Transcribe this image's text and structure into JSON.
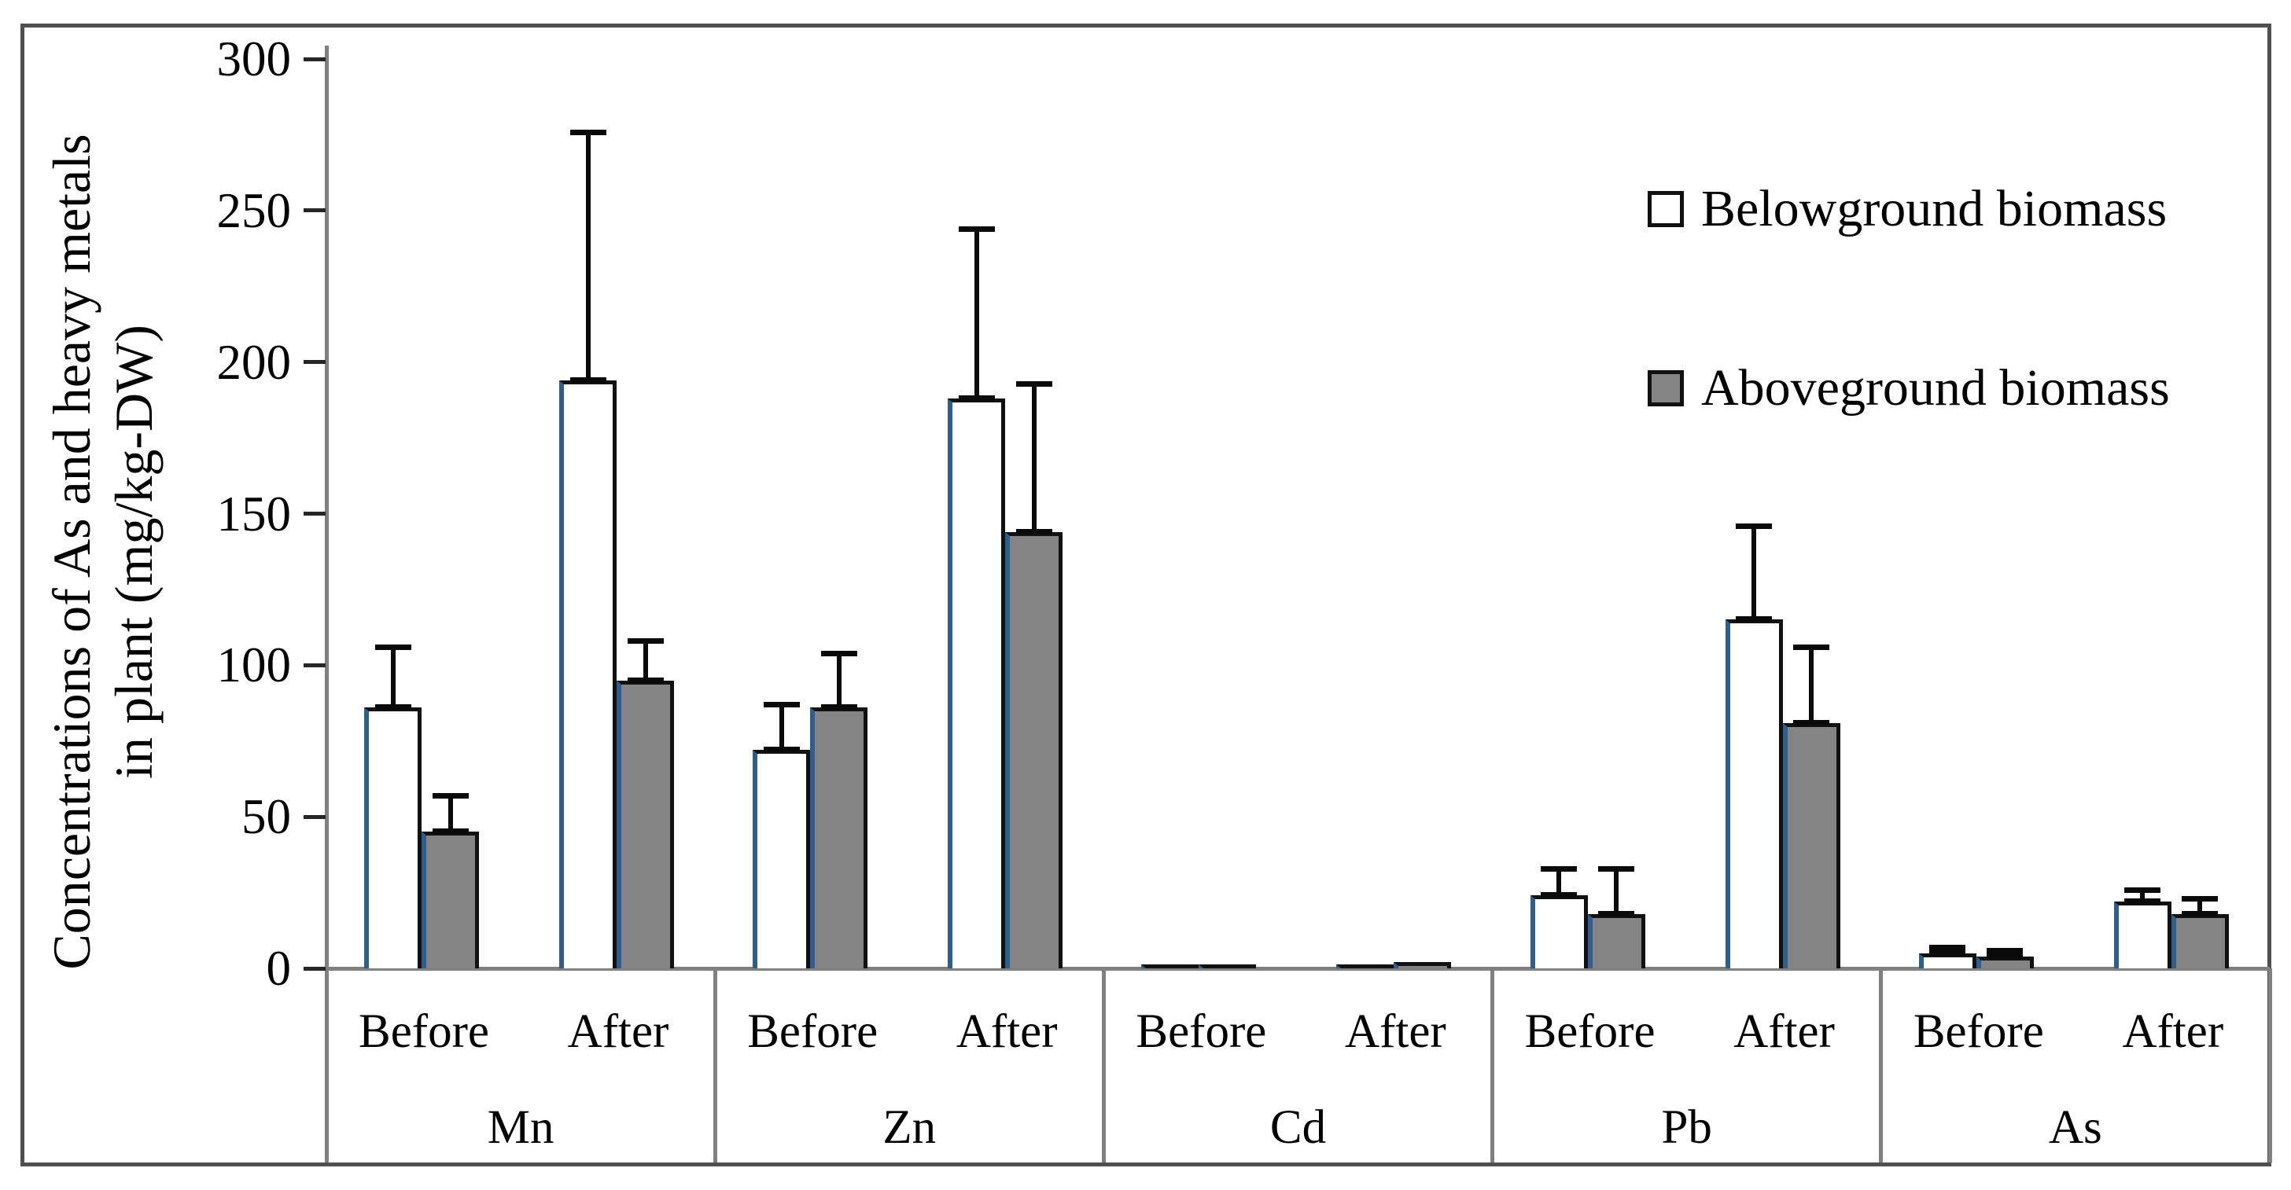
{
  "figure": {
    "background": "#ffffff",
    "border_color": "#4f4f4f"
  },
  "chart_data": {
    "type": "bar",
    "title": "",
    "ylabel_line1": "Concentrations of As and heavy metals",
    "ylabel_line2": "in plant (mg/kg-DW)",
    "ylim": [
      0,
      300
    ],
    "yticks": [
      0,
      50,
      100,
      150,
      200,
      250,
      300
    ],
    "grid": false,
    "legend_position": "top-right-inside",
    "groups": [
      "Mn",
      "Zn",
      "Cd",
      "Pb",
      "As"
    ],
    "conditions": [
      "Before",
      "After"
    ],
    "series": [
      {
        "name": "Belowground biomass",
        "fill": "#ffffff",
        "edge": "#111111",
        "values": [
          [
            86,
            194
          ],
          [
            72,
            188
          ],
          [
            1,
            1
          ],
          [
            24,
            115
          ],
          [
            5,
            22
          ]
        ],
        "error_tops": [
          [
            106,
            276
          ],
          [
            87,
            244
          ],
          [
            1,
            1
          ],
          [
            33,
            146
          ],
          [
            7,
            26
          ]
        ]
      },
      {
        "name": "Aboveground biomass",
        "fill": "#848484",
        "edge": "#111111",
        "values": [
          [
            45,
            95
          ],
          [
            86,
            144
          ],
          [
            1,
            2
          ],
          [
            18,
            81
          ],
          [
            4,
            18
          ]
        ],
        "error_tops": [
          [
            57,
            108
          ],
          [
            104,
            193
          ],
          [
            1,
            2
          ],
          [
            33,
            106
          ],
          [
            6,
            23
          ]
        ]
      }
    ],
    "colors": {
      "axis_gray": "#808080",
      "error_bar": "#0a0a0a",
      "bar_left_edge_blue": "#2d5f8e",
      "belowground_fill": "#ffffff",
      "aboveground_fill": "#848484"
    }
  }
}
